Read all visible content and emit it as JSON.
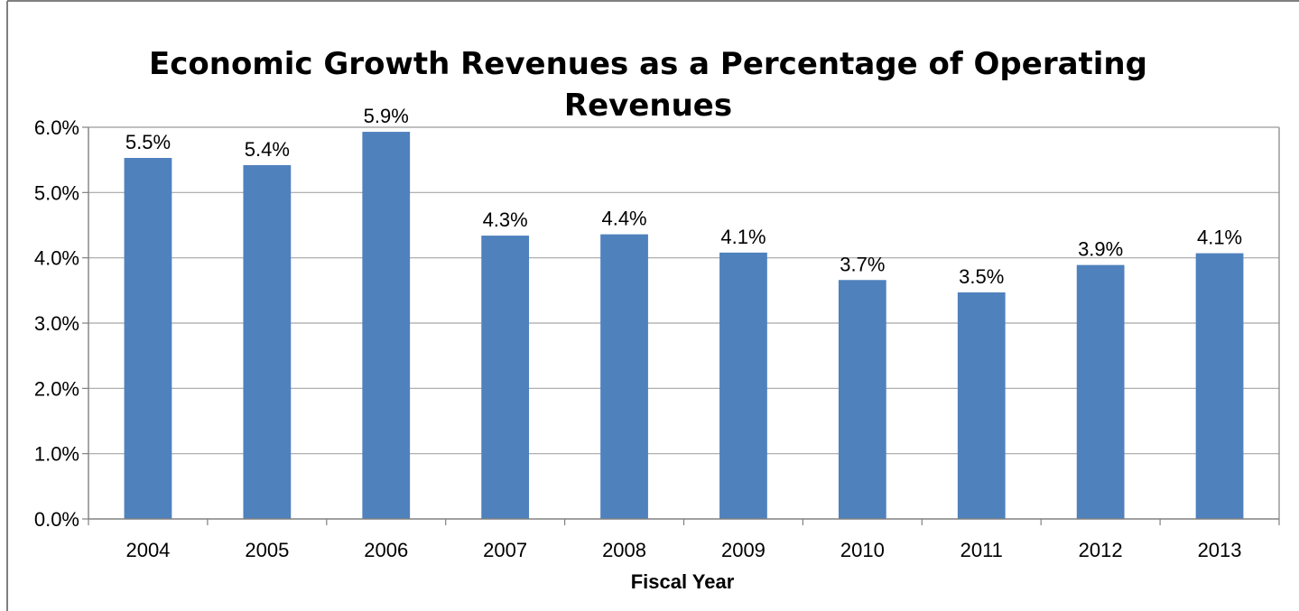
{
  "chart_data": {
    "type": "bar",
    "title_lines": [
      "Economic Growth Revenues as a Percentage of Operating",
      "Revenues"
    ],
    "xlabel": "Fiscal Year",
    "ylabel": "",
    "categories": [
      "2004",
      "2005",
      "2006",
      "2007",
      "2008",
      "2009",
      "2010",
      "2011",
      "2012",
      "2013"
    ],
    "series": [
      {
        "values": [
          5.53,
          5.42,
          5.93,
          4.34,
          4.36,
          4.08,
          3.66,
          3.47,
          3.89,
          4.07
        ],
        "data_labels": [
          "5.5%",
          "5.4%",
          "5.9%",
          "4.3%",
          "4.4%",
          "4.1%",
          "3.7%",
          "3.5%",
          "3.9%",
          "4.1%"
        ],
        "color": "#4F81BD"
      }
    ],
    "ylim": [
      0,
      6
    ],
    "yticks": [
      0,
      1,
      2,
      3,
      4,
      5,
      6
    ],
    "ytick_labels": [
      "0.0%",
      "1.0%",
      "2.0%",
      "3.0%",
      "4.0%",
      "5.0%",
      "6.0%"
    ],
    "grid": true,
    "legend": "none"
  },
  "colors": {
    "bar": "#4F81BD",
    "gridline": "#A6A6A6",
    "axis": "#808080",
    "frame": "#808080"
  }
}
